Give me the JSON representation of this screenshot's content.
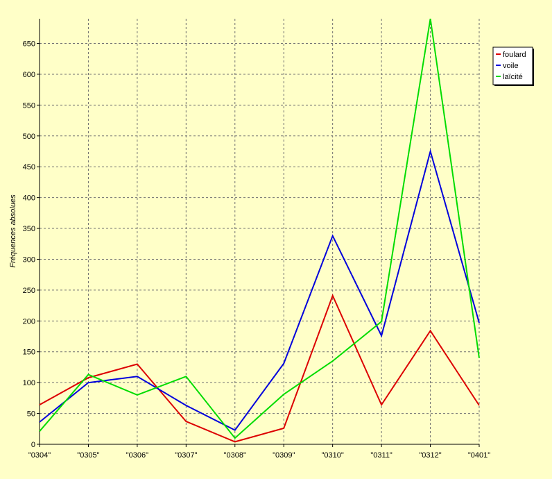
{
  "chart_data": {
    "type": "line",
    "title": "",
    "xlabel": "",
    "ylabel": "Fréquences absolues",
    "categories": [
      "\"0304\"",
      "\"0305\"",
      "\"0306\"",
      "\"0307\"",
      "\"0308\"",
      "\"0309\"",
      "\"0310\"",
      "\"0311\"",
      "\"0312\"",
      "\"0401\""
    ],
    "ylim": [
      0,
      690
    ],
    "yticks": [
      0,
      50,
      100,
      150,
      200,
      250,
      300,
      350,
      400,
      450,
      500,
      550,
      600,
      650
    ],
    "grid": true,
    "legend_position": "top-right",
    "series": [
      {
        "name": "foulard",
        "color": "#dc0000",
        "values": [
          64,
          108,
          130,
          37,
          4,
          26,
          241,
          64,
          184,
          63
        ]
      },
      {
        "name": "voile",
        "color": "#0000dc",
        "values": [
          36,
          100,
          110,
          63,
          23,
          131,
          338,
          176,
          475,
          197
        ]
      },
      {
        "name": "laïcité",
        "color": "#00dc00",
        "values": [
          21,
          113,
          80,
          110,
          10,
          81,
          135,
          199,
          690,
          140
        ]
      }
    ]
  },
  "colors": {
    "page_background": "#ffffc8",
    "plot_background": "#ffffc8",
    "axis": "#000000",
    "grid": "#707070"
  }
}
